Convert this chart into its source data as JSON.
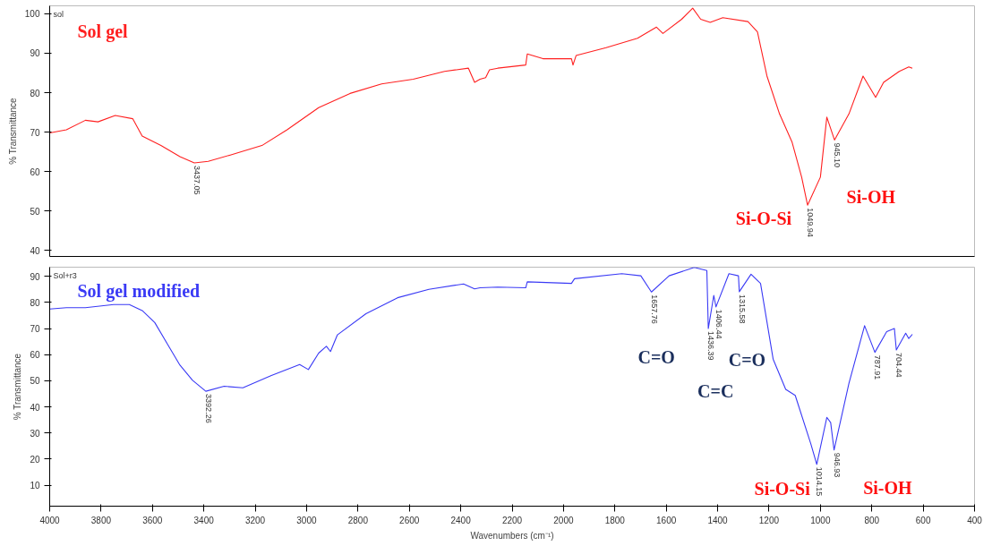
{
  "chart_data": [
    {
      "type": "line",
      "ylabel": "% Transmittance",
      "xlim": [
        4000,
        400
      ],
      "ylim": [
        38.5,
        102
      ],
      "xticks": [
        4000,
        3800,
        3600,
        3400,
        3200,
        3000,
        2800,
        2600,
        2400,
        2200,
        2000,
        1800,
        1600,
        1400,
        1200,
        1000,
        800,
        600,
        400
      ],
      "yticks": [
        40,
        50,
        60,
        70,
        80,
        90,
        100
      ],
      "tick_labels": "y",
      "grid": false,
      "legend": false,
      "marker": "none",
      "line_style": "solid",
      "series": [
        {
          "name": "Sol gel",
          "color": "#ff2020",
          "x": [
            4000,
            3935,
            3861,
            3812,
            3745,
            3677,
            3640,
            3567,
            3493,
            3437.05,
            3383,
            3297,
            3174,
            3076,
            2953,
            2831,
            2708,
            2585,
            2463,
            2370,
            2346,
            2325,
            2303,
            2288,
            2256,
            2147,
            2141,
            2080,
            1969,
            1963,
            1951,
            1834,
            1712,
            1638,
            1613,
            1540,
            1497,
            1466,
            1429,
            1380,
            1282,
            1245,
            1208,
            1159,
            1110,
            1073,
            1049.94,
            1000,
            975,
            945.1,
            889,
            834,
            785,
            754,
            693,
            656,
            642
          ],
          "values": [
            69.8,
            70.6,
            73,
            72.6,
            74.2,
            73.4,
            69,
            66.6,
            63.8,
            62.2,
            62.6,
            64.2,
            66.6,
            70.6,
            76.2,
            79.8,
            82.2,
            83.4,
            85.4,
            86.2,
            82.6,
            83.4,
            83.8,
            85.8,
            86.2,
            87,
            89.8,
            88.6,
            88.6,
            87,
            89.4,
            91.4,
            93.8,
            96.6,
            95,
            98.6,
            101.4,
            98.6,
            97.8,
            99,
            98,
            95.4,
            84.2,
            74.6,
            67.4,
            58.6,
            51.5,
            58.6,
            73.8,
            68,
            74.6,
            84.2,
            78.8,
            82.6,
            85.4,
            86.5,
            86.2
          ]
        }
      ],
      "annotations": [
        "sol",
        {
          "text": "3437.05",
          "x": 3437.05,
          "y": 62.2
        },
        {
          "text": "1049.94",
          "x": 1049.94,
          "y": 51.5
        },
        {
          "text": "945.10",
          "x": 945.1,
          "y": 68
        },
        "Si-O-Si",
        "Si-OH"
      ]
    },
    {
      "type": "line",
      "xlabel": "Wavenumbers (cm⁻¹)",
      "ylabel": "% Transmittance",
      "xlim": [
        4000,
        400
      ],
      "ylim": [
        2,
        93.5
      ],
      "xticks": [
        4000,
        3800,
        3600,
        3400,
        3200,
        3000,
        2800,
        2600,
        2400,
        2200,
        2000,
        1800,
        1600,
        1400,
        1200,
        1000,
        800,
        600,
        400
      ],
      "yticks": [
        10,
        20,
        30,
        40,
        50,
        60,
        70,
        80,
        90
      ],
      "grid": false,
      "legend": false,
      "marker": "none",
      "line_style": "solid",
      "series": [
        {
          "name": "Sol gel modified",
          "color": "#3a3af5",
          "x": [
            4000,
            3935,
            3861,
            3751,
            3690,
            3640,
            3591,
            3542,
            3493,
            3444,
            3392.26,
            3321,
            3248,
            3137,
            3027,
            2993,
            2953,
            2923,
            2907,
            2880,
            2769,
            2646,
            2524,
            2389,
            2346,
            2325,
            2256,
            2147,
            2141,
            1969,
            1957,
            1773,
            1699,
            1657.76,
            1589,
            1491,
            1442,
            1436.39,
            1415,
            1406.44,
            1356,
            1319,
            1315.58,
            1270,
            1233,
            1184,
            1135,
            1098,
            1037,
            1014.15,
            975,
            960,
            946.93,
            889,
            828,
            787.91,
            742,
            712,
            704.44,
            668,
            656,
            642
          ],
          "values": [
            77.5,
            78,
            78,
            79.2,
            79.2,
            76.9,
            72.3,
            64.1,
            56,
            50.2,
            46,
            47.9,
            47.3,
            52,
            56.2,
            54.3,
            60.6,
            63.2,
            61.2,
            67.6,
            75.7,
            81.8,
            85,
            87.1,
            85.2,
            85.6,
            85.9,
            85.6,
            87.9,
            87.3,
            89.1,
            91,
            90.2,
            84,
            90.2,
            93.4,
            92.2,
            70,
            82.7,
            78.3,
            91,
            90.2,
            84.1,
            90.8,
            87.3,
            58.3,
            46.7,
            44.4,
            25.8,
            18,
            36,
            34,
            23.5,
            49,
            71.1,
            60.9,
            68.8,
            70,
            61.8,
            68.2,
            66.2,
            67.8
          ]
        }
      ],
      "annotations": [
        "Sol+r3",
        {
          "text": "3392.26",
          "x": 3392.26,
          "y": 46
        },
        {
          "text": "1657.76",
          "x": 1657.76,
          "y": 84
        },
        {
          "text": "1436.39",
          "x": 1436.39,
          "y": 70
        },
        {
          "text": "1406.44",
          "x": 1406.44,
          "y": 78.3
        },
        {
          "text": "1315.58",
          "x": 1315.58,
          "y": 84.1
        },
        {
          "text": "1014.15",
          "x": 1014.15,
          "y": 18
        },
        {
          "text": "946.93",
          "x": 946.93,
          "y": 23.5
        },
        {
          "text": "787.91",
          "x": 787.91,
          "y": 60.9
        },
        {
          "text": "704.44",
          "x": 704.44,
          "y": 61.8
        },
        "C=O",
        "C=C",
        "C=O",
        "Si-O-Si",
        "Si-OH"
      ]
    }
  ]
}
